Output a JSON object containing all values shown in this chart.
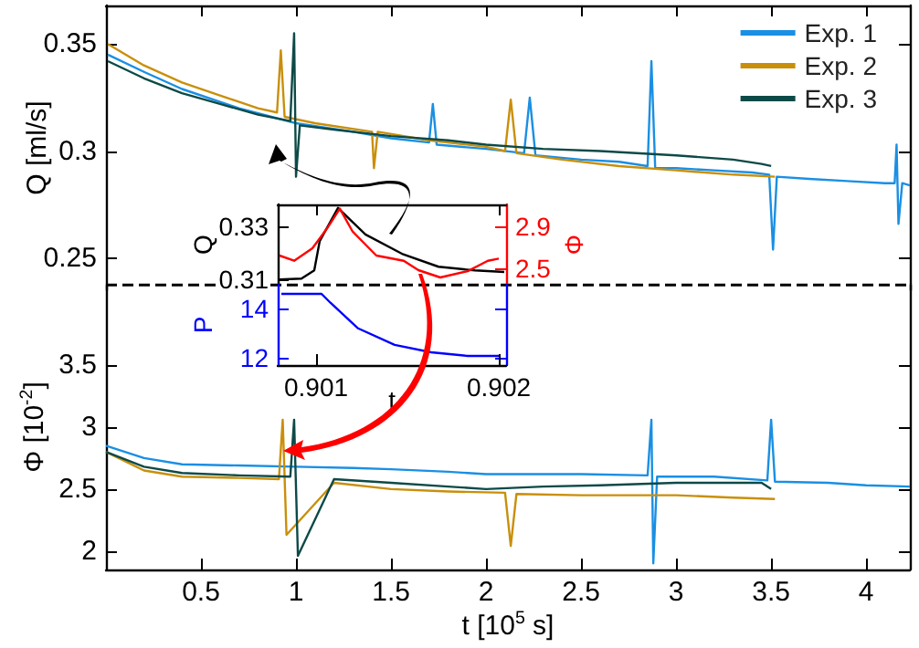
{
  "chart_data": [
    {
      "type": "line",
      "ylabel": "Q [ml/s]",
      "xlim": [
        0,
        4.23
      ],
      "xticks": [
        0.5,
        1,
        1.5,
        2,
        2.5,
        3,
        3.5,
        4
      ],
      "ylim": [
        0.235,
        0.368
      ],
      "yticks": [
        0.25,
        0.3,
        0.35
      ],
      "tick_labels": "y",
      "legend": "top right",
      "ref_lines": [
        {
          "axis": "y",
          "value": 0.2375,
          "line_style": "dashed",
          "color": "#000000"
        }
      ],
      "series": [
        {
          "name": "Exp. 1",
          "color": "#1a8fe3",
          "x": [
            0.01,
            0.2,
            0.4,
            0.7,
            1.0,
            1.3,
            1.5,
            1.7,
            1.72,
            1.74,
            2.0,
            2.2,
            2.23,
            2.26,
            2.5,
            2.7,
            2.85,
            2.87,
            2.89,
            3.0,
            3.2,
            3.4,
            3.49,
            3.51,
            3.53,
            3.7,
            3.9,
            4.1,
            4.15,
            4.16,
            4.17,
            4.19,
            4.23
          ],
          "values": [
            0.345,
            0.337,
            0.329,
            0.32,
            0.313,
            0.309,
            0.306,
            0.304,
            0.322,
            0.303,
            0.301,
            0.299,
            0.325,
            0.298,
            0.296,
            0.295,
            0.293,
            0.342,
            0.292,
            0.292,
            0.291,
            0.29,
            0.289,
            0.254,
            0.288,
            0.287,
            0.286,
            0.285,
            0.285,
            0.303,
            0.266,
            0.285,
            0.284
          ]
        },
        {
          "name": "Exp. 2",
          "color": "#c98f0a",
          "x": [
            0.01,
            0.2,
            0.4,
            0.6,
            0.8,
            0.9,
            0.92,
            0.94,
            1.1,
            1.4,
            1.41,
            1.43,
            1.7,
            2.0,
            2.1,
            2.13,
            2.16,
            2.4,
            2.7,
            3.0,
            3.3,
            3.52
          ],
          "values": [
            0.35,
            0.34,
            0.332,
            0.326,
            0.32,
            0.318,
            0.347,
            0.316,
            0.313,
            0.309,
            0.292,
            0.309,
            0.305,
            0.302,
            0.3,
            0.324,
            0.299,
            0.296,
            0.293,
            0.291,
            0.289,
            0.288
          ]
        },
        {
          "name": "Exp. 3",
          "color": "#0c4a47",
          "x": [
            0.01,
            0.2,
            0.4,
            0.6,
            0.8,
            0.97,
            0.99,
            1.0,
            1.02,
            1.2,
            1.5,
            1.8,
            2.0,
            2.3,
            2.6,
            3.0,
            3.3,
            3.45,
            3.5
          ],
          "values": [
            0.342,
            0.334,
            0.327,
            0.322,
            0.317,
            0.314,
            0.355,
            0.288,
            0.312,
            0.31,
            0.307,
            0.305,
            0.303,
            0.301,
            0.3,
            0.298,
            0.296,
            0.294,
            0.293
          ]
        }
      ]
    },
    {
      "type": "line",
      "xlabel": "t [10$^{5}$ s]",
      "ylabel": "Φ [10$^{-2}$]",
      "xlim": [
        0,
        4.23
      ],
      "xticks": [
        0.5,
        1,
        1.5,
        2,
        2.5,
        3,
        3.5,
        4
      ],
      "ylim": [
        1.85,
        4.15
      ],
      "yticks": [
        2,
        2.5,
        3,
        3.5
      ],
      "series": [
        {
          "color": "#1a8fe3",
          "x": [
            0,
            0.2,
            0.4,
            0.7,
            1.0,
            1.3,
            1.5,
            1.8,
            2.0,
            2.2,
            2.5,
            2.85,
            2.87,
            2.88,
            2.9,
            3.2,
            3.48,
            3.5,
            3.52,
            3.8,
            4.0,
            4.23
          ],
          "values": [
            2.85,
            2.75,
            2.7,
            2.69,
            2.68,
            2.67,
            2.66,
            2.64,
            2.62,
            2.62,
            2.62,
            2.61,
            3.06,
            1.9,
            2.6,
            2.6,
            2.57,
            3.06,
            2.56,
            2.55,
            2.53,
            2.52
          ]
        },
        {
          "color": "#c98f0a",
          "x": [
            0,
            0.2,
            0.4,
            0.7,
            0.91,
            0.93,
            0.95,
            1.2,
            1.5,
            1.8,
            2.1,
            2.13,
            2.16,
            2.5,
            3.0,
            3.3,
            3.52
          ],
          "values": [
            2.8,
            2.65,
            2.6,
            2.59,
            2.58,
            3.06,
            2.13,
            2.55,
            2.5,
            2.48,
            2.47,
            2.04,
            2.46,
            2.45,
            2.45,
            2.43,
            2.42
          ]
        },
        {
          "color": "#0c4a47",
          "x": [
            0,
            0.2,
            0.4,
            0.7,
            0.97,
            0.99,
            1.01,
            1.2,
            1.5,
            1.8,
            2.0,
            2.3,
            2.6,
            3.0,
            3.3,
            3.45,
            3.5
          ],
          "values": [
            2.8,
            2.68,
            2.63,
            2.61,
            2.6,
            3.06,
            1.96,
            2.58,
            2.55,
            2.52,
            2.5,
            2.52,
            2.53,
            2.55,
            2.55,
            2.55,
            2.5
          ]
        }
      ]
    },
    {
      "type": "line",
      "ylabel": "Q",
      "y2label": "Φ",
      "xlim": [
        0.90079,
        0.90204
      ],
      "xticks": [
        0.901,
        0.902
      ],
      "ylim": [
        0.308,
        0.3383
      ],
      "yticks": [
        0.31,
        0.33
      ],
      "y2lim": [
        2.34,
        3.11
      ],
      "y2ticks": [
        2.5,
        2.9
      ],
      "tick_labels": "y",
      "series": [
        {
          "color": "#000000",
          "x": [
            0.9008,
            0.90092,
            0.90099,
            0.90102,
            0.90112,
            0.90127,
            0.90147,
            0.90167,
            0.90187,
            0.90203
          ],
          "values": [
            0.31,
            0.3103,
            0.3134,
            0.3245,
            0.337,
            0.327,
            0.3197,
            0.3148,
            0.3134,
            0.3128
          ]
        },
        {
          "color": "#ff0000",
          "axis": "y2",
          "x": [
            0.9008,
            0.90088,
            0.90098,
            0.90106,
            0.90113,
            0.9012,
            0.90133,
            0.90148,
            0.90156,
            0.90168,
            0.90183,
            0.90194,
            0.902
          ],
          "values": [
            2.62,
            2.57,
            2.69,
            2.88,
            3.07,
            2.85,
            2.62,
            2.57,
            2.48,
            2.41,
            2.47,
            2.57,
            2.59
          ]
        }
      ]
    },
    {
      "type": "line",
      "xlabel": "t",
      "ylabel": "P",
      "xlim": [
        0.90079,
        0.90204
      ],
      "xticks": [
        0.901,
        0.902
      ],
      "ylim": [
        11.7,
        14.96
      ],
      "yticks": [
        12,
        14
      ],
      "series": [
        {
          "color": "#0000ff",
          "x": [
            0.90081,
            0.90103,
            0.90108,
            0.90123,
            0.90143,
            0.90163,
            0.90183,
            0.902
          ],
          "values": [
            14.59,
            14.59,
            14.22,
            13.19,
            12.52,
            12.22,
            12.07,
            12.07
          ]
        }
      ]
    }
  ]
}
